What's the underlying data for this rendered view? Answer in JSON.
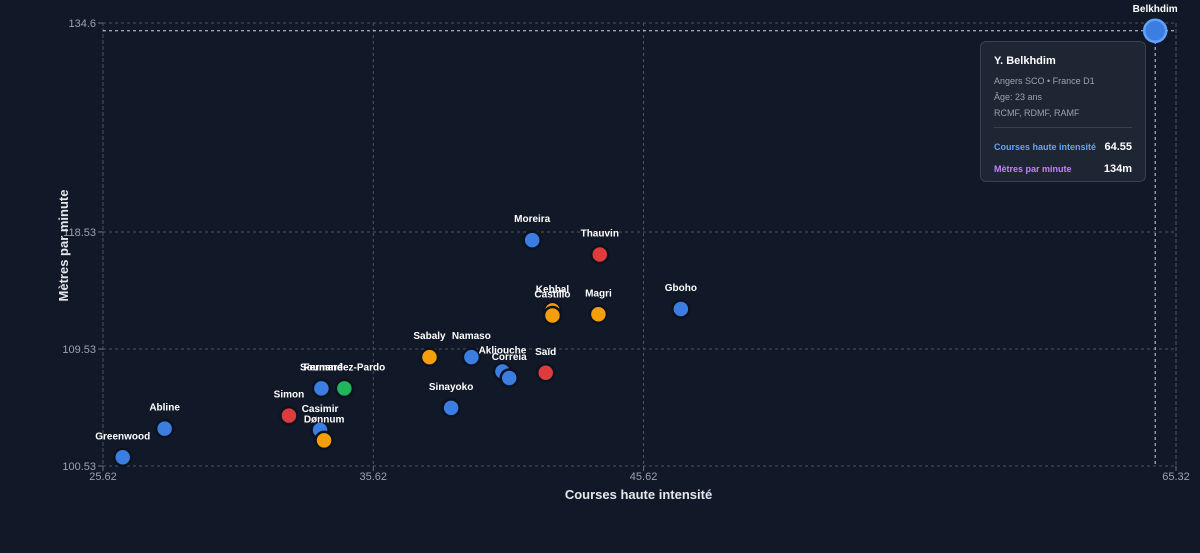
{
  "chart_data": {
    "type": "scatter",
    "xlabel": "Courses haute intensité",
    "ylabel": "Mètres par minute",
    "xlim": [
      25.62,
      65.32
    ],
    "ylim": [
      100.53,
      134.6
    ],
    "xticks": [
      "25.62",
      "35.62",
      "45.62",
      "65.32"
    ],
    "yticks": [
      "100.53",
      "109.53",
      "118.53",
      "134.6"
    ],
    "grid": true,
    "colors": {
      "blue": "#3b7de0",
      "orange": "#f59e0b",
      "red": "#dc3c3c",
      "green": "#22b55c"
    },
    "points": [
      {
        "name": "Belkhdim",
        "x": 64.55,
        "y": 134.0,
        "color": "blue",
        "highlight": true
      },
      {
        "name": "Moreira",
        "x": 41.5,
        "y": 117.9,
        "color": "blue"
      },
      {
        "name": "Thauvin",
        "x": 44.0,
        "y": 116.8,
        "color": "red"
      },
      {
        "name": "Kebbal",
        "x": 42.25,
        "y": 112.5,
        "color": "orange"
      },
      {
        "name": "Castillo",
        "x": 42.25,
        "y": 112.1,
        "color": "orange"
      },
      {
        "name": "Magri",
        "x": 43.95,
        "y": 112.2,
        "color": "orange"
      },
      {
        "name": "Gboho",
        "x": 47.0,
        "y": 112.6,
        "color": "blue"
      },
      {
        "name": "Sabaly",
        "x": 37.7,
        "y": 108.9,
        "color": "orange"
      },
      {
        "name": "Namaso",
        "x": 39.25,
        "y": 108.9,
        "color": "blue"
      },
      {
        "name": "Akliouche",
        "x": 40.4,
        "y": 107.8,
        "color": "blue"
      },
      {
        "name": "Correia",
        "x": 40.65,
        "y": 107.3,
        "color": "blue"
      },
      {
        "name": "Saïd",
        "x": 42.0,
        "y": 107.7,
        "color": "red"
      },
      {
        "name": "Sinayoko",
        "x": 38.5,
        "y": 105.0,
        "color": "blue"
      },
      {
        "name": "Soumaré",
        "x": 33.7,
        "y": 106.5,
        "color": "blue"
      },
      {
        "name": "Fernandez-Pardo",
        "x": 34.55,
        "y": 106.5,
        "color": "green"
      },
      {
        "name": "Simon",
        "x": 32.5,
        "y": 104.4,
        "color": "red"
      },
      {
        "name": "Casimir",
        "x": 33.65,
        "y": 103.3,
        "color": "blue"
      },
      {
        "name": "Dønnum",
        "x": 33.8,
        "y": 102.5,
        "color": "orange"
      },
      {
        "name": "Abline",
        "x": 27.9,
        "y": 103.4,
        "color": "blue"
      },
      {
        "name": "Greenwood",
        "x": 26.35,
        "y": 101.2,
        "color": "blue"
      }
    ],
    "tooltip": {
      "name": "Y. Belkhdim",
      "club": "Angers SCO • France D1",
      "age": "Âge: 23 ans",
      "positions": "RCMF, RDMF, RAMF",
      "rows": [
        {
          "label": "Courses haute intensité",
          "value": "64.55",
          "color": "#60a5fa"
        },
        {
          "label": "Mètres par minute",
          "value": "134m",
          "color": "#c084fc"
        }
      ]
    }
  }
}
